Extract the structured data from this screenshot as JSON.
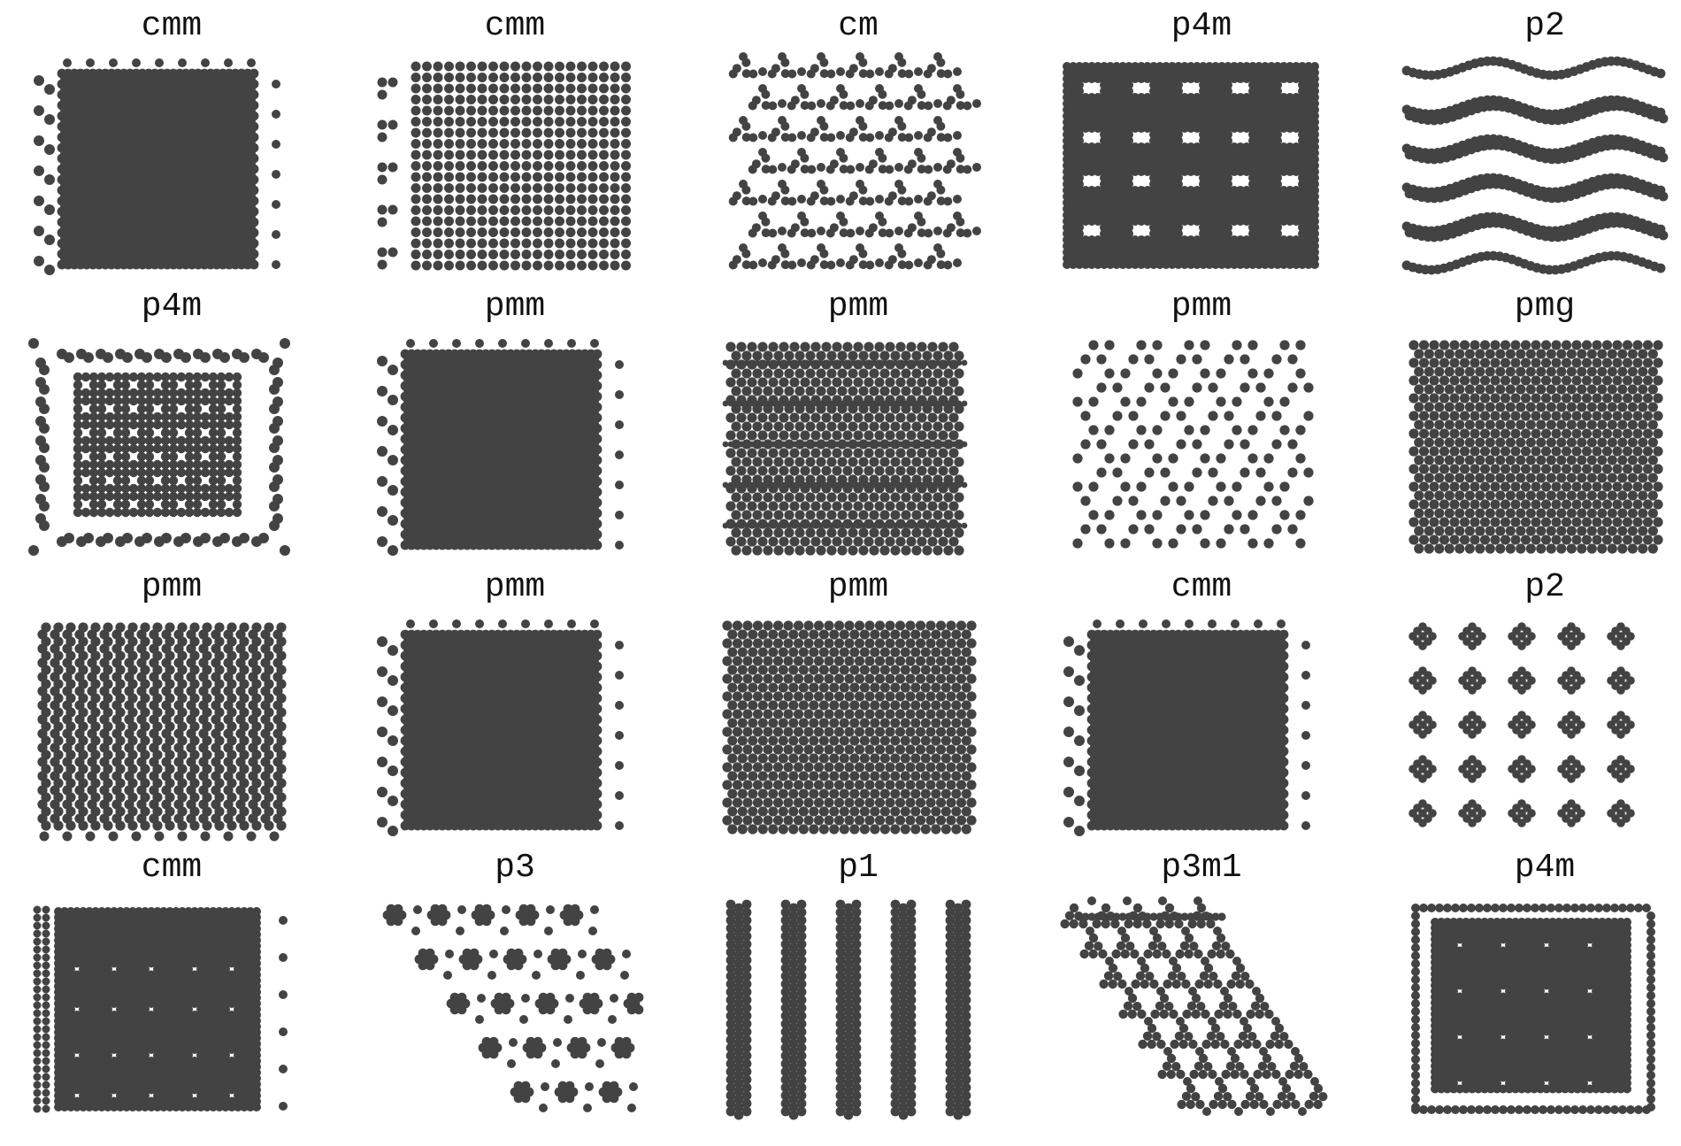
{
  "figure": {
    "dot_color": "#434343",
    "background": "#ffffff",
    "panels": [
      {
        "label": "cmm",
        "pattern": "dense-rect"
      },
      {
        "label": "cmm",
        "pattern": "square-lattice"
      },
      {
        "label": "cm",
        "pattern": "triangle-motif"
      },
      {
        "label": "p4m",
        "pattern": "square-holes"
      },
      {
        "label": "p2",
        "pattern": "wavy-rows"
      },
      {
        "label": "p4m",
        "pattern": "grid-with-ring"
      },
      {
        "label": "pmm",
        "pattern": "dense-rect"
      },
      {
        "label": "pmm",
        "pattern": "banded-rows"
      },
      {
        "label": "pmm",
        "pattern": "sparse-diamond"
      },
      {
        "label": "pmg",
        "pattern": "hex-lattice"
      },
      {
        "label": "pmm",
        "pattern": "column-lattice"
      },
      {
        "label": "pmm",
        "pattern": "dense-rect"
      },
      {
        "label": "pmm",
        "pattern": "hex-lattice"
      },
      {
        "label": "cmm",
        "pattern": "dense-rect"
      },
      {
        "label": "p2",
        "pattern": "clusters"
      },
      {
        "label": "cmm",
        "pattern": "dense-rect-holes"
      },
      {
        "label": "p3",
        "pattern": "flower-rhombus"
      },
      {
        "label": "p1",
        "pattern": "vertical-stripes"
      },
      {
        "label": "p3m1",
        "pattern": "triangle-parallelogram"
      },
      {
        "label": "p4m",
        "pattern": "dense-ring"
      }
    ]
  }
}
